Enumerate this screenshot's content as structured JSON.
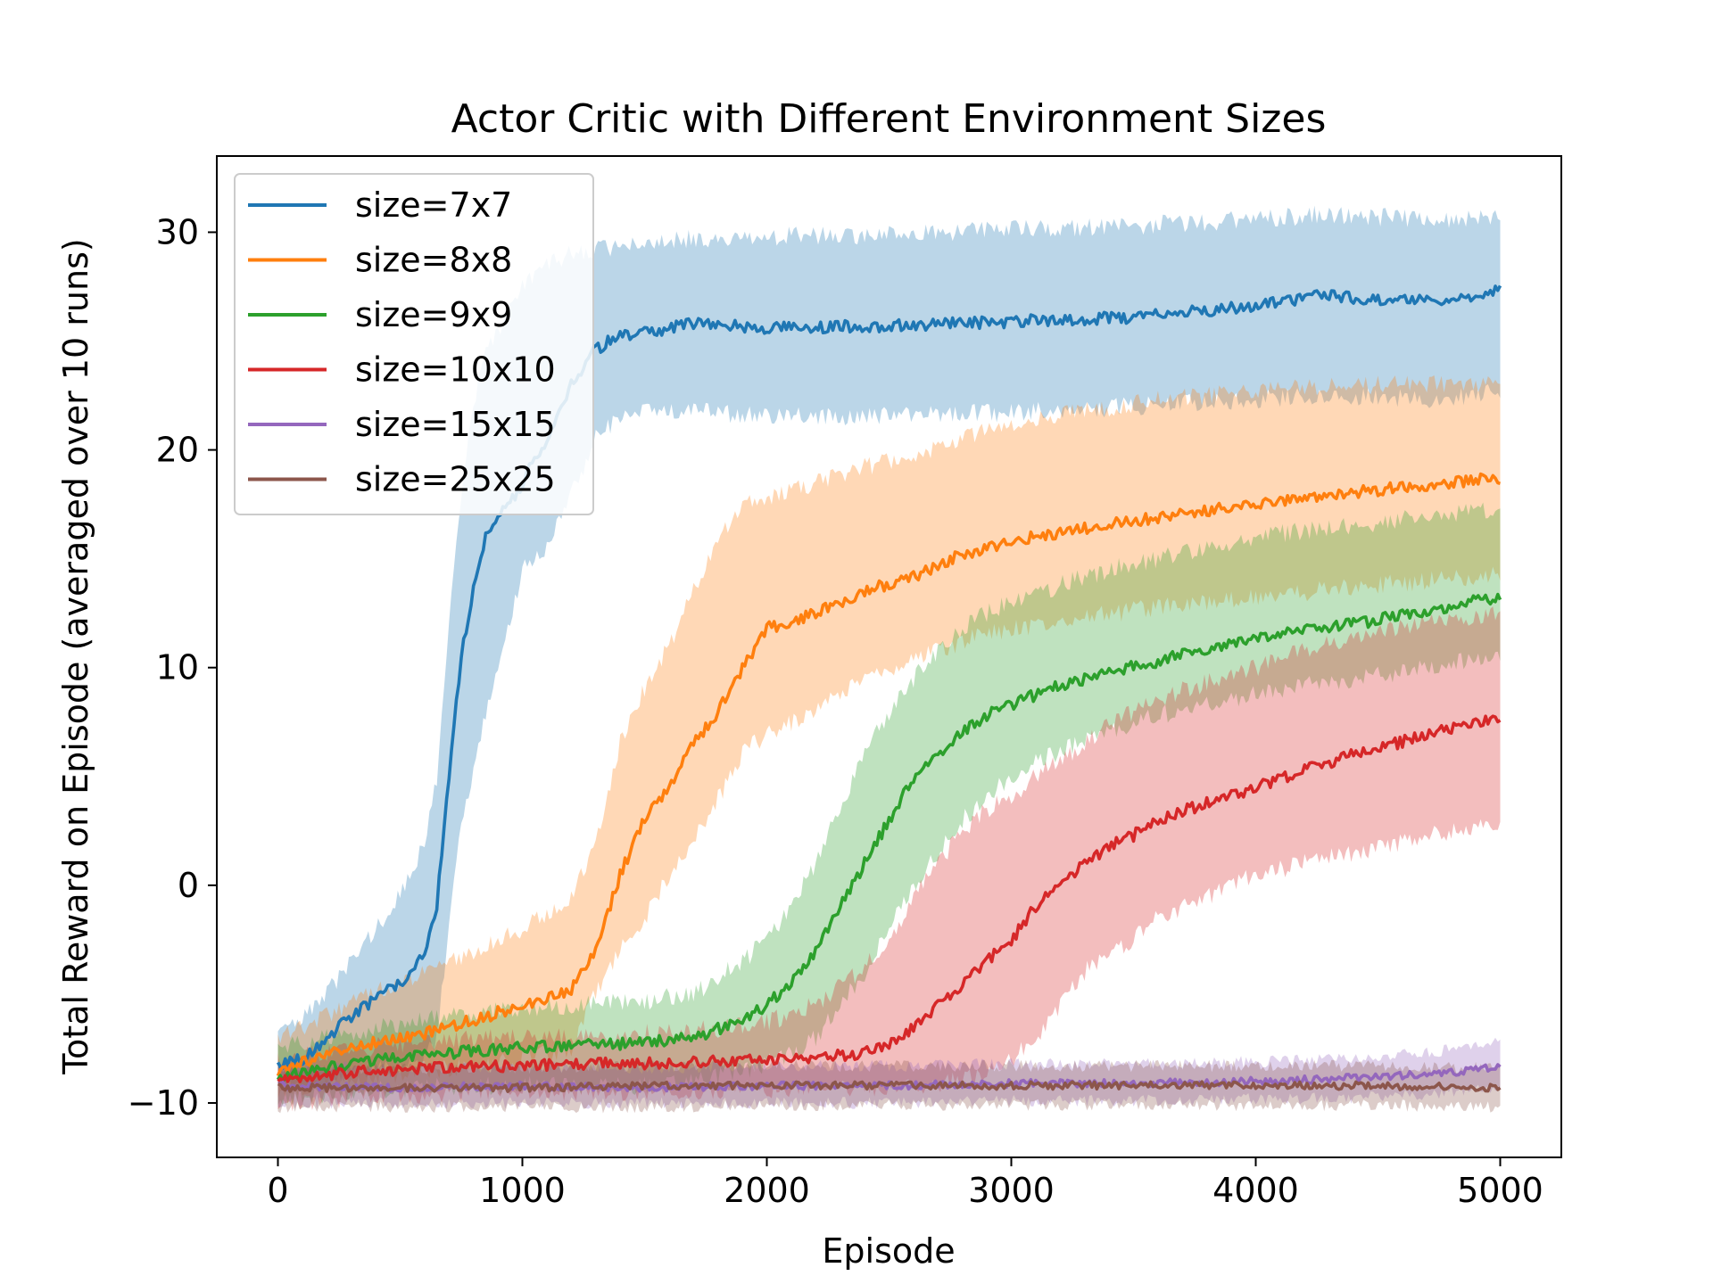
{
  "chart_data": {
    "type": "line",
    "title": "Actor Critic with Different Environment Sizes",
    "xlabel": "Episode",
    "ylabel": "Total Reward on Episode (averaged over 10 runs)",
    "xlim": [
      -250,
      5250
    ],
    "ylim": [
      -12.5,
      33.5
    ],
    "xticks": [
      0,
      1000,
      2000,
      3000,
      4000,
      5000
    ],
    "xtick_labels": [
      "0",
      "1000",
      "2000",
      "3000",
      "4000",
      "5000"
    ],
    "yticks": [
      -10,
      0,
      10,
      20,
      30
    ],
    "ytick_labels": [
      "−10",
      "0",
      "10",
      "20",
      "30"
    ],
    "grid": false,
    "legend_position": "top-left",
    "series": [
      {
        "name": "size=7x7",
        "color": "#1f77b4",
        "x": [
          0,
          100,
          200,
          300,
          400,
          500,
          600,
          650,
          700,
          750,
          800,
          850,
          900,
          950,
          1000,
          1100,
          1200,
          1300,
          1400,
          1500,
          1700,
          2000,
          2500,
          3000,
          3500,
          4000,
          4250,
          4500,
          4800,
          5000
        ],
        "y": [
          -8.3,
          -8.0,
          -7.0,
          -6.0,
          -5.2,
          -4.5,
          -3.0,
          -1.0,
          5.0,
          10.5,
          13.5,
          16.0,
          17.0,
          17.5,
          18.5,
          20.5,
          23.0,
          24.6,
          25.3,
          25.4,
          25.8,
          25.6,
          25.7,
          25.9,
          26.1,
          26.6,
          27.1,
          26.9,
          26.8,
          27.3
        ],
        "lower": [
          -9.0,
          -9.5,
          -9.0,
          -8.5,
          -8.5,
          -8.5,
          -8.0,
          -7.0,
          -2.0,
          3.0,
          5.0,
          8.0,
          10.0,
          12.0,
          14.5,
          15.5,
          18.0,
          20.5,
          21.5,
          21.7,
          21.8,
          21.5,
          21.6,
          21.7,
          22.0,
          22.3,
          22.5,
          22.4,
          22.3,
          22.8
        ],
        "upper": [
          -6.8,
          -6.2,
          -5.0,
          -3.5,
          -2.0,
          -0.5,
          2.0,
          5.0,
          12.0,
          18.0,
          22.0,
          24.5,
          25.5,
          26.5,
          27.5,
          28.5,
          29.0,
          29.2,
          29.4,
          29.6,
          29.7,
          29.8,
          29.9,
          30.1,
          30.3,
          30.6,
          30.8,
          30.7,
          30.5,
          30.7
        ]
      },
      {
        "name": "size=8x8",
        "color": "#ff7f0e",
        "x": [
          0,
          200,
          400,
          600,
          800,
          1000,
          1200,
          1300,
          1400,
          1500,
          1600,
          1700,
          1800,
          1900,
          2000,
          2200,
          2400,
          2600,
          2800,
          3000,
          3300,
          3600,
          4000,
          4300,
          4600,
          5000
        ],
        "y": [
          -8.5,
          -7.8,
          -7.2,
          -6.8,
          -6.2,
          -5.5,
          -4.8,
          -3.0,
          0.5,
          3.0,
          4.5,
          6.5,
          8.0,
          10.0,
          11.8,
          12.5,
          13.5,
          14.2,
          15.2,
          15.8,
          16.4,
          16.9,
          17.5,
          17.9,
          18.3,
          18.7
        ],
        "lower": [
          -9.5,
          -9.0,
          -8.8,
          -8.5,
          -8.3,
          -8.0,
          -7.5,
          -5.0,
          -3.0,
          -1.5,
          0.5,
          2.0,
          4.0,
          6.0,
          7.0,
          8.0,
          9.5,
          10.3,
          11.2,
          11.8,
          12.3,
          12.8,
          13.2,
          13.6,
          13.9,
          14.3
        ],
        "upper": [
          -7.0,
          -6.0,
          -4.8,
          -4.0,
          -3.0,
          -2.0,
          -0.5,
          2.0,
          6.5,
          9.0,
          11.0,
          13.5,
          16.0,
          17.5,
          17.8,
          18.5,
          19.2,
          19.8,
          20.5,
          21.2,
          21.8,
          22.3,
          22.7,
          22.9,
          23.0,
          23.1
        ]
      },
      {
        "name": "size=9x9",
        "color": "#2ca02c",
        "x": [
          0,
          300,
          600,
          900,
          1200,
          1500,
          1700,
          1900,
          2000,
          2100,
          2200,
          2300,
          2400,
          2500,
          2600,
          2700,
          2800,
          2900,
          3000,
          3200,
          3400,
          3600,
          3800,
          4000,
          4200,
          4400,
          4600,
          4800,
          5000
        ],
        "y": [
          -8.8,
          -8.2,
          -7.8,
          -7.5,
          -7.4,
          -7.2,
          -7.0,
          -6.2,
          -5.5,
          -4.5,
          -3.0,
          -1.0,
          1.0,
          3.0,
          5.0,
          6.0,
          7.0,
          7.8,
          8.3,
          9.2,
          9.8,
          10.3,
          10.9,
          11.3,
          11.7,
          12.0,
          12.4,
          12.8,
          13.3
        ],
        "lower": [
          -9.8,
          -9.5,
          -9.3,
          -9.2,
          -9.2,
          -9.2,
          -9.0,
          -8.5,
          -8.2,
          -7.8,
          -7.0,
          -5.5,
          -4.0,
          -2.0,
          0.0,
          1.5,
          3.0,
          4.0,
          5.0,
          6.2,
          7.0,
          7.8,
          8.3,
          8.8,
          9.2,
          9.5,
          9.8,
          10.2,
          10.5
        ],
        "upper": [
          -7.5,
          -6.8,
          -6.2,
          -5.8,
          -5.5,
          -5.3,
          -5.0,
          -3.5,
          -2.5,
          -1.0,
          1.0,
          3.5,
          6.0,
          8.0,
          9.5,
          10.8,
          11.8,
          12.5,
          13.0,
          13.8,
          14.5,
          15.0,
          15.5,
          16.0,
          16.3,
          16.5,
          16.8,
          17.0,
          17.3
        ]
      },
      {
        "name": "size=10x10",
        "color": "#d62728",
        "x": [
          0,
          300,
          600,
          900,
          1200,
          1500,
          1800,
          2000,
          2200,
          2400,
          2500,
          2600,
          2700,
          2800,
          2900,
          3000,
          3100,
          3200,
          3300,
          3400,
          3500,
          3600,
          3800,
          4000,
          4200,
          4400,
          4600,
          4800,
          5000
        ],
        "y": [
          -9.0,
          -8.6,
          -8.4,
          -8.3,
          -8.2,
          -8.2,
          -8.1,
          -8.0,
          -7.9,
          -7.7,
          -7.4,
          -6.5,
          -5.5,
          -4.5,
          -3.5,
          -2.5,
          -1.0,
          0.0,
          1.0,
          1.8,
          2.3,
          3.0,
          3.8,
          4.5,
          5.3,
          6.0,
          6.6,
          7.2,
          7.7
        ],
        "lower": [
          -10.0,
          -9.8,
          -9.6,
          -9.5,
          -9.5,
          -9.5,
          -9.4,
          -9.4,
          -9.3,
          -9.3,
          -9.3,
          -9.2,
          -9.1,
          -8.9,
          -8.5,
          -8.0,
          -7.0,
          -5.5,
          -4.0,
          -3.0,
          -2.5,
          -1.5,
          -0.5,
          0.5,
          1.0,
          1.5,
          2.0,
          2.5,
          3.0
        ],
        "upper": [
          -8.0,
          -7.5,
          -7.2,
          -7.0,
          -6.9,
          -6.8,
          -6.6,
          -6.3,
          -5.5,
          -3.8,
          -2.5,
          -0.5,
          1.0,
          2.5,
          3.5,
          4.0,
          5.0,
          5.8,
          6.5,
          7.3,
          8.0,
          8.6,
          9.3,
          10.0,
          10.8,
          11.3,
          11.8,
          12.2,
          12.5
        ]
      },
      {
        "name": "size=15x15",
        "color": "#9467bd",
        "x": [
          0,
          500,
          1000,
          1500,
          2000,
          2500,
          3000,
          3500,
          4000,
          4300,
          4500,
          4700,
          4900,
          5000
        ],
        "y": [
          -9.2,
          -9.3,
          -9.2,
          -9.3,
          -9.2,
          -9.2,
          -9.1,
          -9.1,
          -9.0,
          -8.9,
          -8.8,
          -8.7,
          -8.5,
          -8.3
        ],
        "lower": [
          -10.0,
          -10.0,
          -10.0,
          -10.0,
          -10.0,
          -10.0,
          -9.9,
          -9.9,
          -9.8,
          -9.8,
          -9.7,
          -9.6,
          -9.4,
          -9.3
        ],
        "upper": [
          -8.3,
          -8.4,
          -8.3,
          -8.4,
          -8.3,
          -8.3,
          -8.2,
          -8.2,
          -8.1,
          -8.0,
          -7.9,
          -7.7,
          -7.4,
          -7.2
        ]
      },
      {
        "name": "size=25x25",
        "color": "#8c564b",
        "x": [
          0,
          500,
          1000,
          1500,
          2000,
          2500,
          3000,
          3500,
          4000,
          4500,
          5000
        ],
        "y": [
          -9.3,
          -9.3,
          -9.3,
          -9.2,
          -9.2,
          -9.2,
          -9.2,
          -9.2,
          -9.2,
          -9.2,
          -9.3
        ],
        "lower": [
          -10.2,
          -10.2,
          -10.2,
          -10.2,
          -10.1,
          -10.1,
          -10.1,
          -10.1,
          -10.1,
          -10.1,
          -10.2
        ],
        "upper": [
          -8.4,
          -8.4,
          -8.4,
          -8.3,
          -8.3,
          -8.3,
          -8.3,
          -8.3,
          -8.3,
          -8.3,
          -8.4
        ]
      }
    ]
  }
}
